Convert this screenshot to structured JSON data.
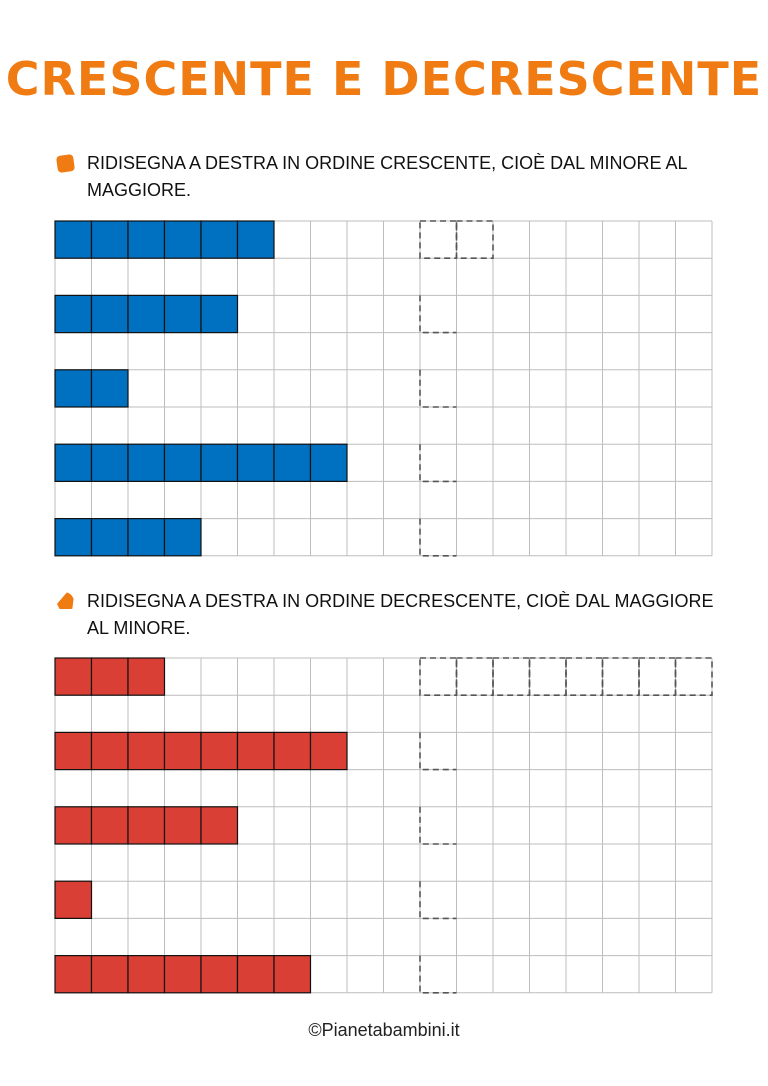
{
  "title": "CRESCENTE E DECRESCENTE",
  "sections": [
    {
      "instruction": "RIDISEGNA A DESTRA IN ORDINE CRESCENTE, CIOÈ DAL MINORE AL MAGGIORE.",
      "bar_color": "#0070c0",
      "bar_lengths": [
        6,
        5,
        2,
        8,
        4
      ],
      "example_answer_length": 2
    },
    {
      "instruction": "RIDISEGNA A DESTRA IN ORDINE DECRESCENTE, CIOÈ DAL MAGGIORE AL MINORE.",
      "bar_color": "#d93f35",
      "bar_lengths": [
        3,
        8,
        5,
        1,
        7
      ],
      "example_answer_length": 8
    }
  ],
  "bullet_color": "#f07b13",
  "footer": "©Pianetabambini.it"
}
